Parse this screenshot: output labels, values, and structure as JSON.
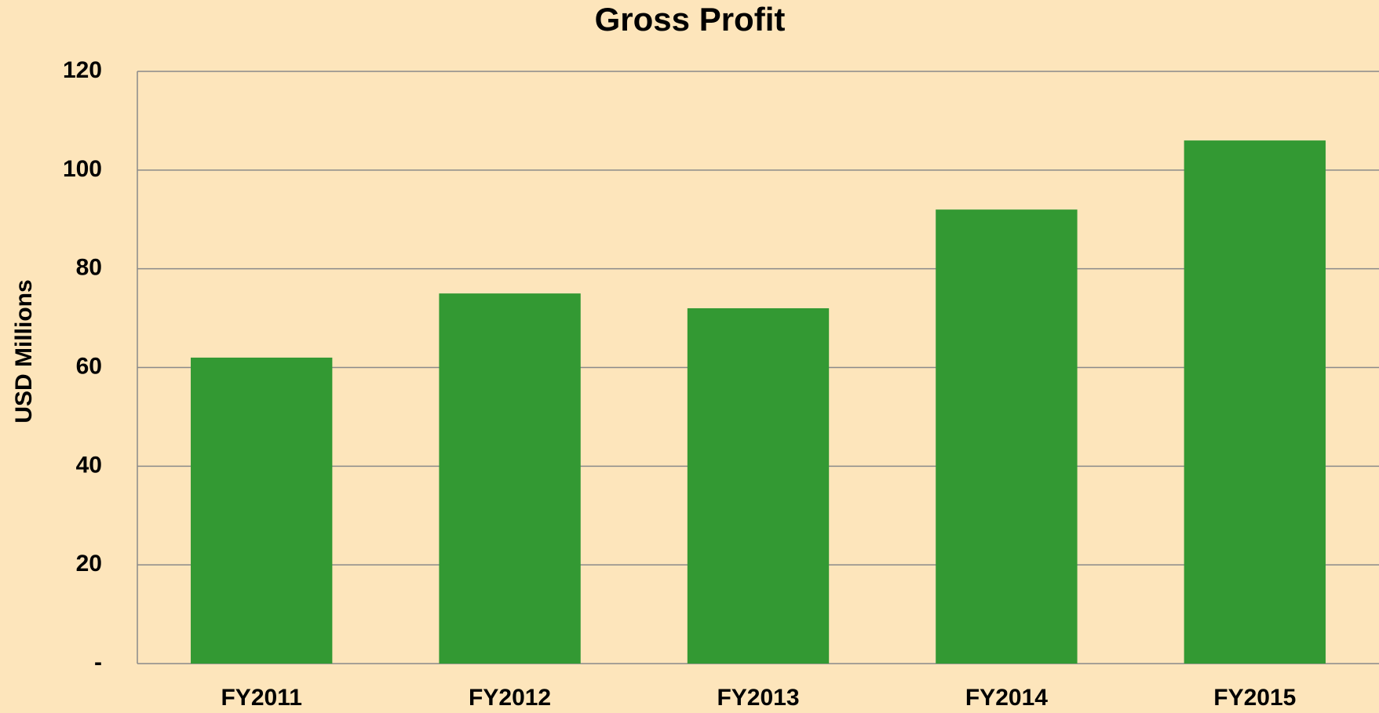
{
  "chart_data": {
    "type": "bar",
    "title": "Gross Profit",
    "y_label": "USD Millions",
    "categories": [
      "FY2011",
      "FY2012",
      "FY2013",
      "FY2014",
      "FY2015"
    ],
    "values": [
      62,
      75,
      72,
      92,
      106
    ],
    "color": "#339933",
    "ylim": [
      0,
      120
    ],
    "yticks": [
      {
        "value": 0,
        "label": "-"
      },
      20,
      40,
      60,
      80,
      100,
      120
    ],
    "grid": true
  }
}
